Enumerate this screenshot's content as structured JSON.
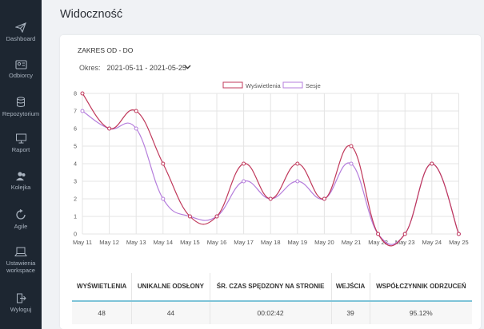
{
  "sidebar": {
    "items": [
      {
        "label": "Dashboard",
        "icon": "paper-plane-icon"
      },
      {
        "label": "Odbiorcy",
        "icon": "contact-card-icon"
      },
      {
        "label": "Repozytorium",
        "icon": "database-icon"
      },
      {
        "label": "Raport",
        "icon": "presentation-board-icon"
      },
      {
        "label": "Kolejka",
        "icon": "users-icon"
      },
      {
        "label": "Agile",
        "icon": "refresh-cycle-icon"
      },
      {
        "label": "Ustawienia workspace",
        "icon": "laptop-icon"
      },
      {
        "label": "Wyloguj",
        "icon": "logout-icon"
      }
    ]
  },
  "page": {
    "title": "Widoczność"
  },
  "filter": {
    "range_label": "ZAKRES OD - DO",
    "period_label": "Okres:",
    "period_value": "2021-05-11 - 2021-05-25"
  },
  "colors": {
    "sidebar_bg": "#1d2631",
    "series1": "#c0395b",
    "series2": "#b57edc",
    "accent": "#7fc4d8"
  },
  "chart_data": {
    "type": "line",
    "categories": [
      "May 11",
      "May 12",
      "May 13",
      "May 14",
      "May 15",
      "May 16",
      "May 17",
      "May 18",
      "May 19",
      "May 20",
      "May 21",
      "May 22",
      "May 23",
      "May 24",
      "May 25"
    ],
    "series": [
      {
        "name": "Wyświetlenia",
        "values": [
          8,
          6,
          7,
          4,
          1,
          1,
          4,
          2,
          4,
          2,
          5,
          0,
          0,
          4,
          0
        ]
      },
      {
        "name": "Sesje",
        "values": [
          7,
          6,
          6,
          2,
          1,
          1,
          3,
          2,
          3,
          2,
          4,
          0,
          0,
          4,
          0
        ]
      }
    ],
    "ylim": [
      0,
      8
    ],
    "yticks": [
      0,
      1,
      2,
      3,
      4,
      5,
      6,
      7,
      8
    ],
    "grid": true,
    "legend": "top-center"
  },
  "stats": {
    "headers": [
      "WYŚWIETLENIA",
      "UNIKALNE ODSŁONY",
      "ŚR. CZAS SPĘDZONY NA STRONIE",
      "WEJŚCIA",
      "WSPÓŁCZYNNIK ODRZUCEŃ"
    ],
    "values": [
      "48",
      "44",
      "00:02:42",
      "39",
      "95.12%"
    ]
  }
}
